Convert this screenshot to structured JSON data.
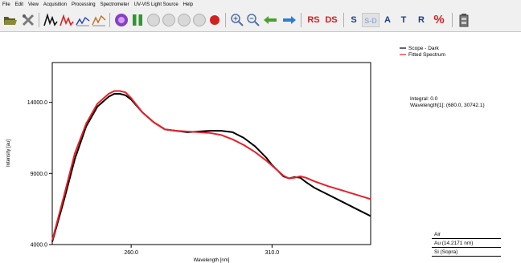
{
  "menu": [
    "File",
    "Edit",
    "View",
    "Acquisition",
    "Processing",
    "Spectrometer",
    "UV-VIS Light Source",
    "Help"
  ],
  "toolbar": {
    "icons": [
      "open-folder-icon",
      "tools-icon",
      "scope-mode-icon",
      "absorbance-mode-icon",
      "transmittance-mode-icon",
      "spectrometer-icon",
      "pause-icon",
      "disabled-circle-icon",
      "disabled-circle-icon",
      "disabled-circle-icon",
      "disabled-circle-icon",
      "record-icon",
      "zoom-in-icon",
      "zoom-out-icon",
      "arrow-left-icon",
      "arrow-right-icon",
      "battery-icon"
    ],
    "rs_label": "RS",
    "ds_label": "DS",
    "s_label": "S",
    "sd_label": "S-D",
    "a_label": "A",
    "t_label": "T",
    "r_label": "R",
    "percent_label": "%"
  },
  "legend": [
    {
      "name": "Scope - Dark",
      "color": "#000000"
    },
    {
      "name": "Fitted Spectrum",
      "color": "#e8202a"
    }
  ],
  "info": {
    "integral": "Integral: 0.0",
    "wavelength": "Wavelength[1]: (680.0, 30742.1)"
  },
  "layers": [
    "Air",
    "Au (14.2171 nm)",
    "Si (Sopra)"
  ],
  "chart_data": {
    "type": "line",
    "xlabel": "Wavelength [nm]",
    "ylabel": "Intensity [au]",
    "xlim": [
      232,
      345
    ],
    "ylim": [
      4000,
      16800
    ],
    "xticks": [
      260,
      310
    ],
    "xtick_labels": [
      "260.0",
      "310.0"
    ],
    "yticks": [
      4000,
      9000,
      14000
    ],
    "ytick_labels": [
      "4000.0",
      "9000.0",
      "14000.0"
    ],
    "series": [
      {
        "name": "Scope - Dark",
        "color": "#000000",
        "x": [
          232,
          236,
          240,
          244,
          248,
          252,
          254,
          256,
          258,
          260,
          264,
          268,
          272,
          276,
          280,
          284,
          288,
          292,
          296,
          300,
          304,
          308,
          310,
          312,
          314,
          316,
          318,
          320,
          322,
          325,
          330,
          335,
          340,
          345
        ],
        "y": [
          4200,
          7000,
          10000,
          12300,
          13700,
          14400,
          14600,
          14600,
          14500,
          14200,
          13300,
          12600,
          12100,
          12000,
          11900,
          11950,
          12000,
          12000,
          11900,
          11500,
          10900,
          10100,
          9600,
          9200,
          8800,
          8650,
          8750,
          8700,
          8400,
          8000,
          7500,
          7000,
          6500,
          6000
        ]
      },
      {
        "name": "Fitted Spectrum",
        "color": "#e8202a",
        "x": [
          232,
          236,
          240,
          244,
          248,
          252,
          254,
          256,
          258,
          260,
          264,
          268,
          272,
          276,
          280,
          284,
          288,
          292,
          296,
          300,
          304,
          308,
          312,
          314,
          316,
          318,
          320,
          322,
          325,
          330,
          335,
          340,
          345
        ],
        "y": [
          4300,
          7300,
          10400,
          12500,
          13900,
          14600,
          14800,
          14800,
          14700,
          14300,
          13300,
          12600,
          12100,
          12000,
          11950,
          11900,
          11850,
          11700,
          11400,
          11000,
          10500,
          9900,
          9200,
          8850,
          8650,
          8700,
          8800,
          8700,
          8450,
          8100,
          7800,
          7500,
          7200
        ]
      }
    ]
  }
}
